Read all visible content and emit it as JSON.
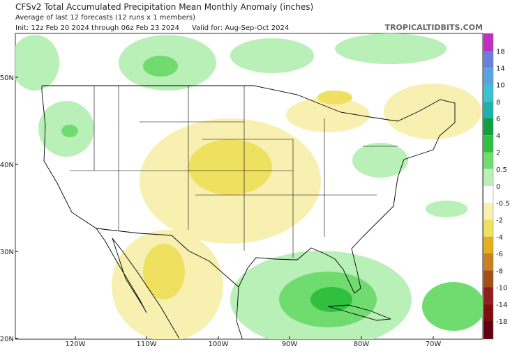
{
  "header": {
    "title": "CFSv2 Total Accumulated Precipitation Mean Monthly Anomaly (inches)",
    "subtitle": "Average of last 12 forecasts (12 runs x 1 members)",
    "init": "Init: 12z Feb 20 2024 through 06z Feb 23 2024",
    "valid": "Valid for: Aug-Sep-Oct 2024",
    "source": "TROPICALTIDBITS.COM"
  },
  "map": {
    "lat_labels": [
      "50N",
      "40N",
      "30N",
      "20N"
    ],
    "lon_labels": [
      "120W",
      "110W",
      "100W",
      "90W",
      "80W",
      "70W"
    ]
  },
  "colorbar": {
    "labels": [
      18,
      14,
      10,
      8,
      6,
      4,
      2,
      0.5,
      0,
      -0.5,
      -2,
      -4,
      -6,
      -8,
      -10,
      -14,
      -18
    ],
    "colors": [
      "#c030c0",
      "#6a7fdb",
      "#5ba3e0",
      "#3fc0d0",
      "#20b2aa",
      "#10a040",
      "#30c040",
      "#70dc70",
      "#b8f0b8",
      "#ffffff",
      "#f8f0b0",
      "#f0e060",
      "#e0b020",
      "#c88020",
      "#a05018",
      "#902020",
      "#801010",
      "#600010"
    ]
  }
}
